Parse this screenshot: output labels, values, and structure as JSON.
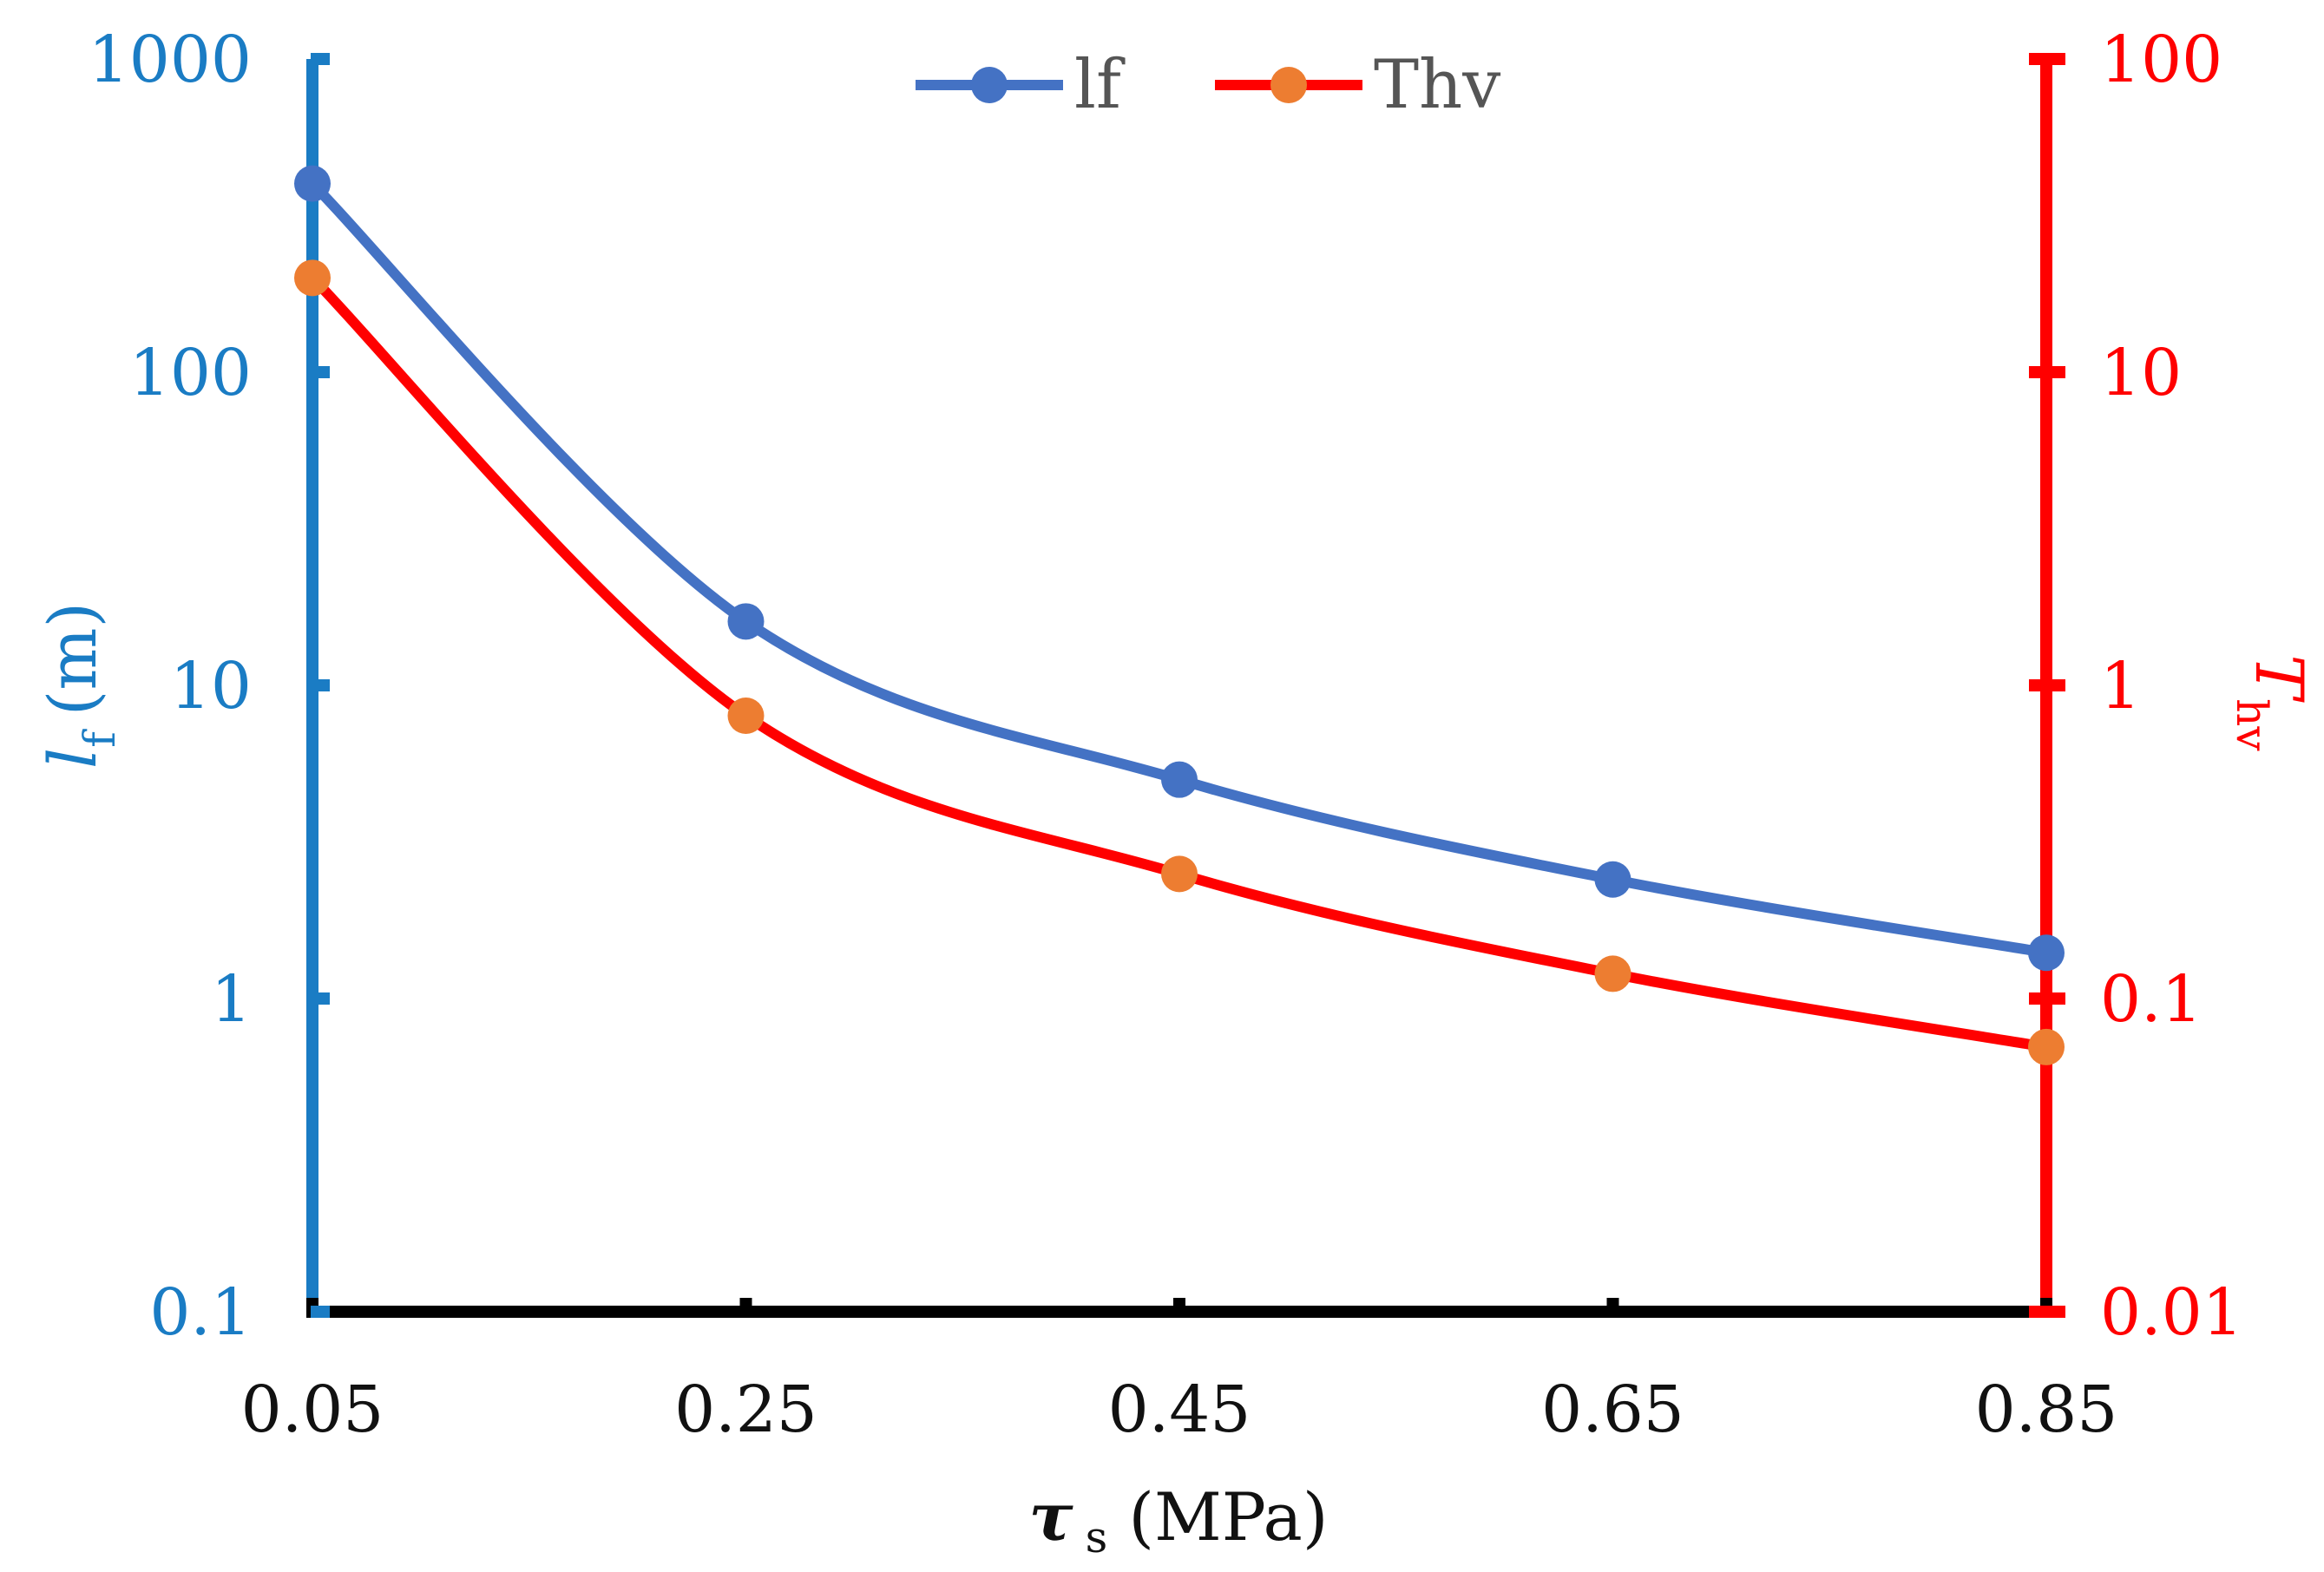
{
  "chart_data": {
    "type": "line",
    "x": [
      0.05,
      0.25,
      0.45,
      0.65,
      0.85
    ],
    "x_tick_labels": [
      "0.05",
      "0.25",
      "0.45",
      "0.65",
      "0.85"
    ],
    "xlim": [
      0.05,
      0.85
    ],
    "xlabel": {
      "symbol": "τ",
      "subscript": "s",
      "unit": "(MPa)"
    },
    "y_left": {
      "label_symbol": "l",
      "label_subscript": "f",
      "label_unit": "(m)",
      "scale": "log",
      "range": [
        0.1,
        1000
      ],
      "tick_labels": [
        "0.1",
        "1",
        "10",
        "100",
        "1000"
      ],
      "color": "#1a7cc4"
    },
    "y_right": {
      "label_symbol": "T",
      "label_subscript": "hv",
      "scale": "log",
      "range": [
        0.01,
        100
      ],
      "tick_labels": [
        "0.01",
        "0.1",
        "1",
        "10",
        "100"
      ],
      "color": "#ff0000"
    },
    "series": [
      {
        "name": "lf",
        "axis": "left",
        "values": [
          400,
          16,
          5,
          2.4,
          1.4
        ],
        "line_color": "#4472c4",
        "marker_color": "#4472c4"
      },
      {
        "name": "Thv",
        "axis": "right",
        "values": [
          20,
          0.8,
          0.25,
          0.12,
          0.07
        ],
        "line_color": "#ff0000",
        "marker_color": "#ed7d31"
      }
    ],
    "legend": {
      "position": "top-center",
      "entries": [
        "lf",
        "Thv"
      ]
    }
  }
}
